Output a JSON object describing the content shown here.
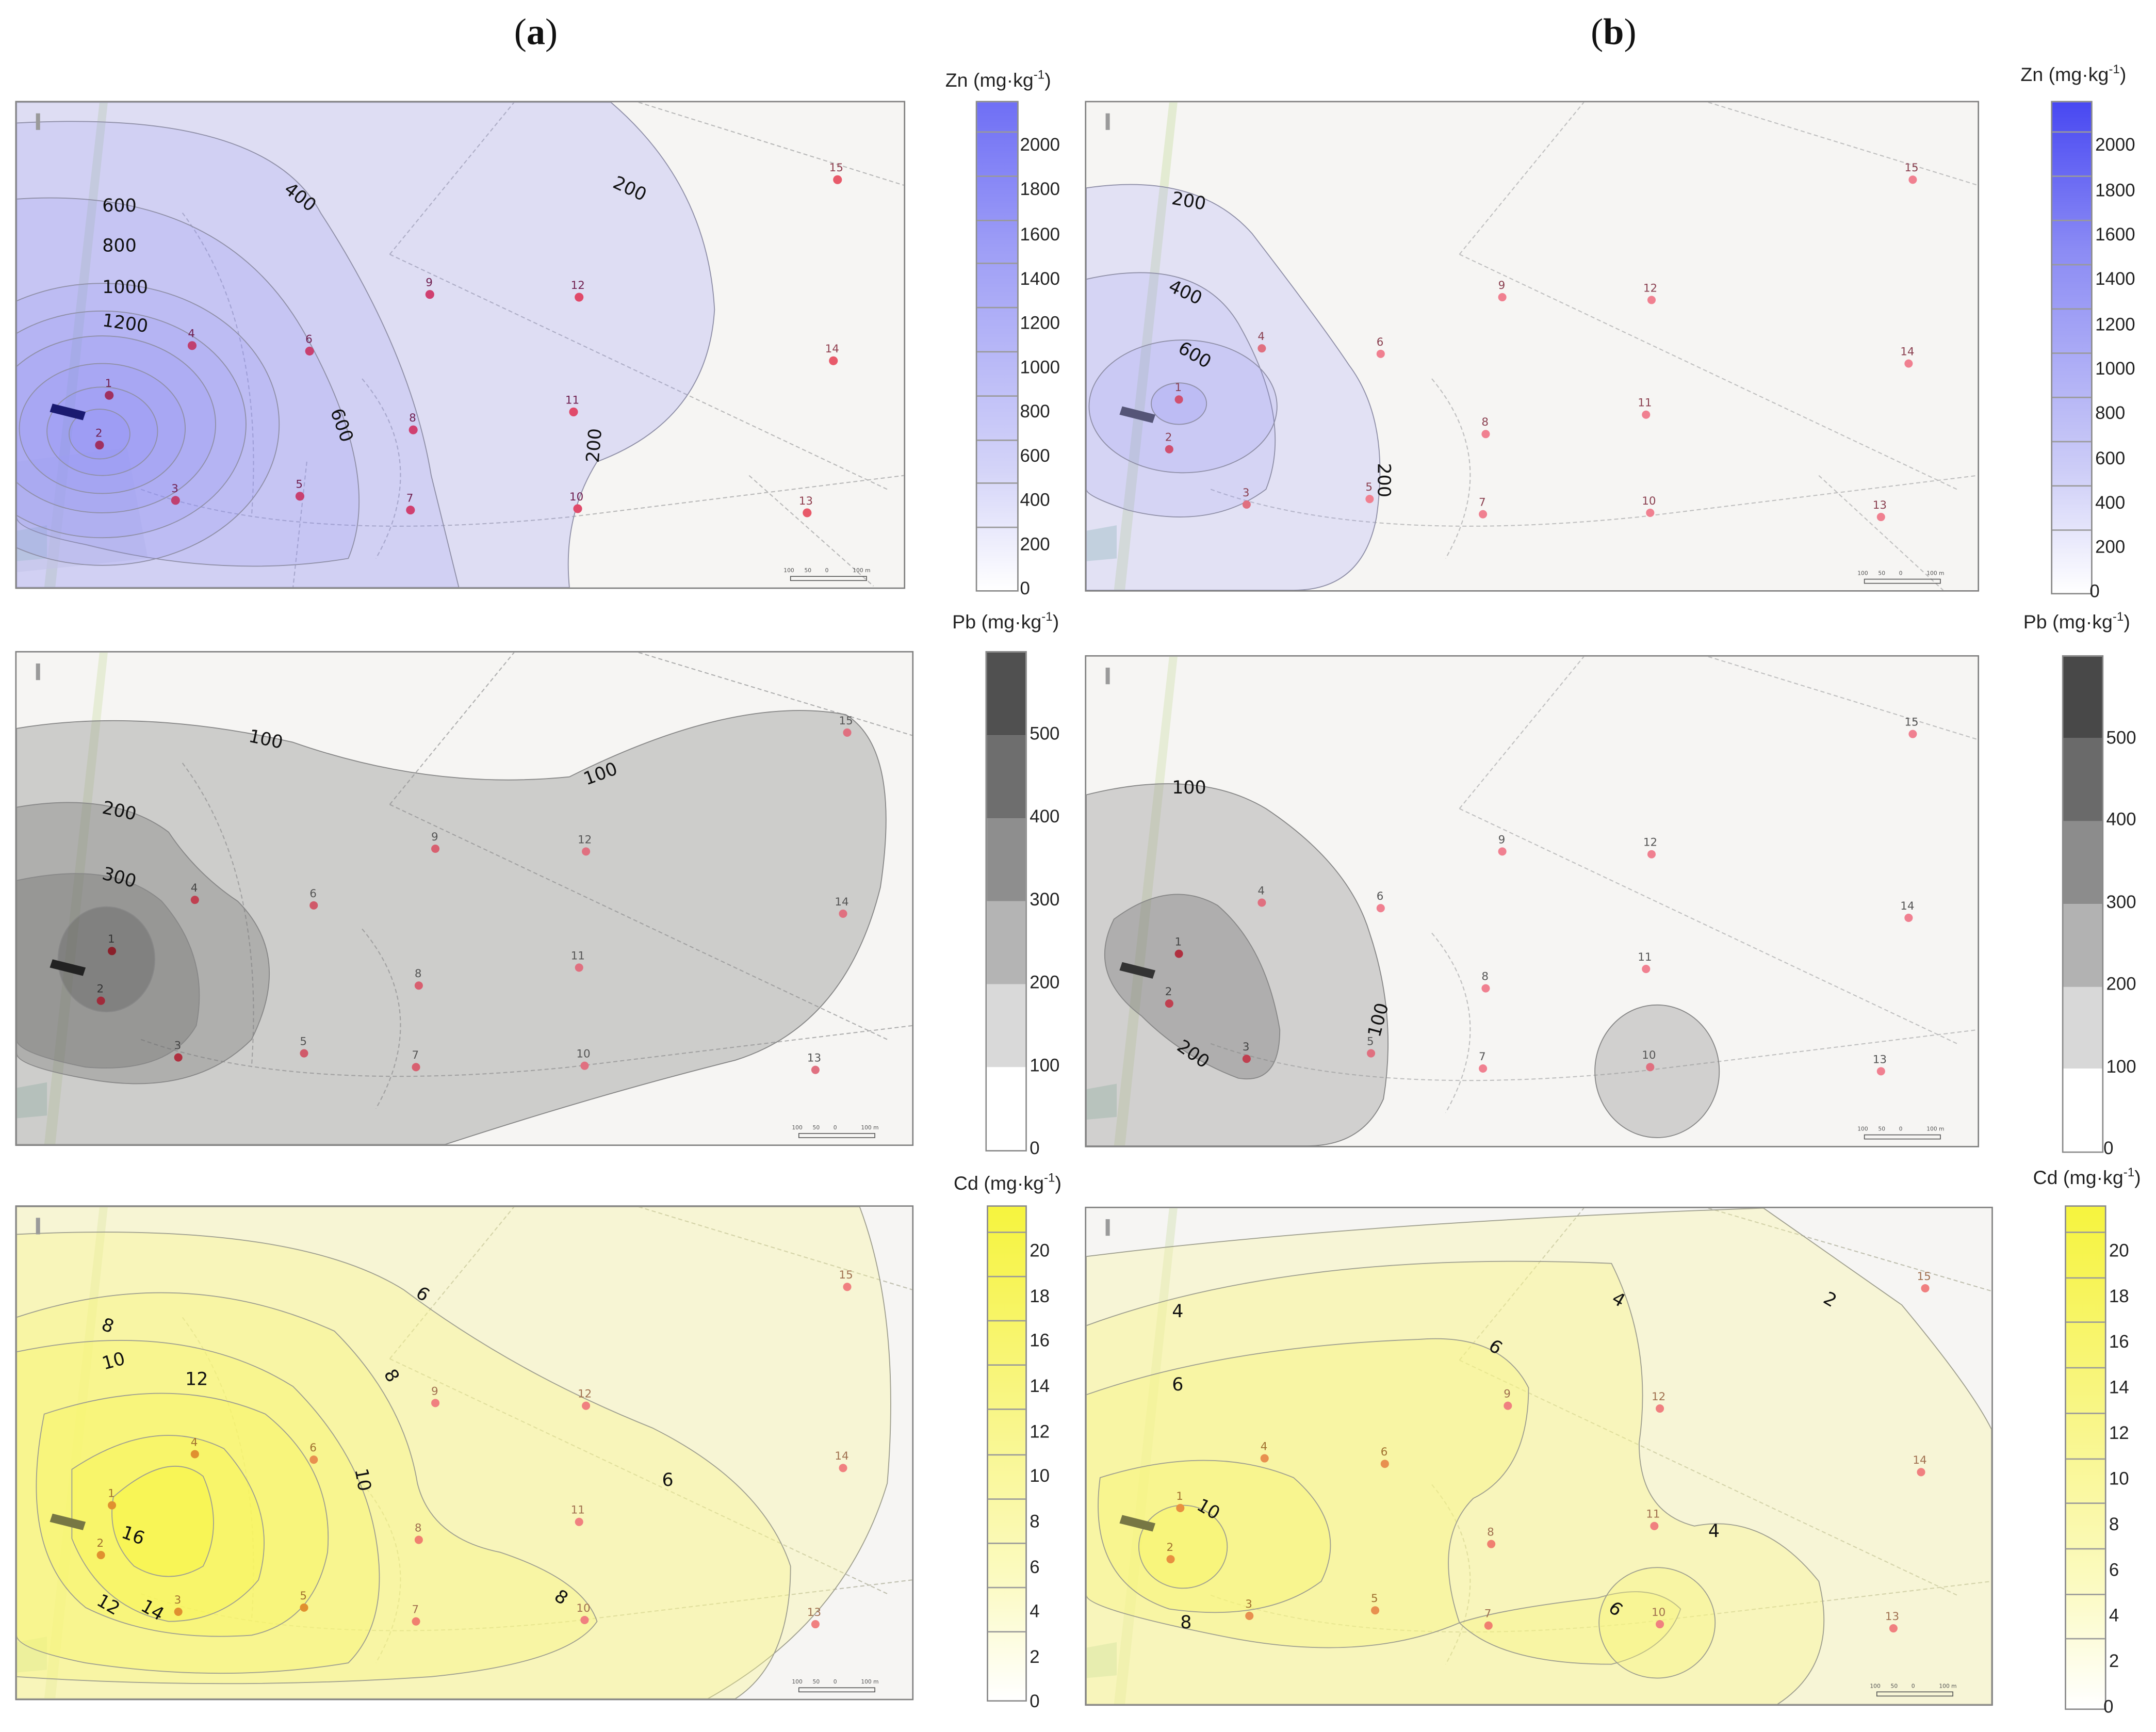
{
  "panels": {
    "a": {
      "letter": "a",
      "open": "(",
      "close": ")"
    },
    "b": {
      "letter": "b",
      "open": "(",
      "close": ")"
    }
  },
  "legends": {
    "zn": {
      "element": "Zn",
      "unit": "mg·kg",
      "exp": "-1",
      "ticks": [
        "2000",
        "1800",
        "1600",
        "1400",
        "1200",
        "1000",
        "800",
        "600",
        "400",
        "200",
        "0"
      ],
      "color": "#6a6af5"
    },
    "pb": {
      "element": "Pb",
      "unit": "mg·kg",
      "exp": "-1",
      "ticks": [
        "500",
        "400",
        "300",
        "200",
        "100",
        "0"
      ],
      "color": "#4a4a4a"
    },
    "cd": {
      "element": "Cd",
      "unit": "mg·kg",
      "exp": "-1",
      "ticks": [
        "20",
        "18",
        "16",
        "14",
        "12",
        "10",
        "8",
        "6",
        "4",
        "2",
        "0"
      ],
      "color": "#f6f54a"
    }
  },
  "sampling_points": [
    "1",
    "2",
    "3",
    "4",
    "5",
    "6",
    "7",
    "8",
    "9",
    "10",
    "11",
    "12",
    "13",
    "14",
    "15"
  ],
  "contours": {
    "a_zn": [
      "200",
      "200",
      "400",
      "600",
      "600",
      "800",
      "1000",
      "1200"
    ],
    "b_zn": [
      "200",
      "400",
      "600",
      "200"
    ],
    "a_pb": [
      "100",
      "100",
      "200",
      "300"
    ],
    "b_pb": [
      "100",
      "100",
      "200"
    ],
    "a_cd": [
      "6",
      "8",
      "10",
      "12",
      "8",
      "10",
      "6",
      "8",
      "16",
      "12",
      "14"
    ],
    "b_cd": [
      "4",
      "4",
      "2",
      "6",
      "6",
      "10",
      "8",
      "4",
      "6"
    ]
  },
  "scale_labels": [
    "100",
    "50",
    "0",
    "100 m"
  ]
}
